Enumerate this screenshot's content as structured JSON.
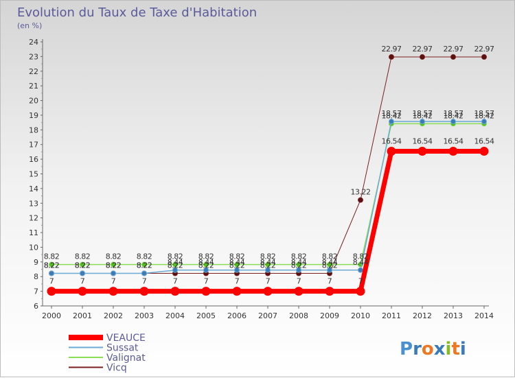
{
  "chart_data": {
    "type": "line",
    "title": "Evolution du Taux de Taxe d'Habitation",
    "subtitle": "(en %)",
    "x": [
      "2000",
      "2001",
      "2002",
      "2003",
      "2004",
      "2005",
      "2006",
      "2007",
      "2008",
      "2009",
      "2010",
      "2011",
      "2012",
      "2013",
      "2014"
    ],
    "ylim": [
      6,
      24
    ],
    "yticks": [
      6,
      7,
      8,
      9,
      10,
      11,
      12,
      13,
      14,
      15,
      16,
      17,
      18,
      19,
      20,
      21,
      22,
      23,
      24
    ],
    "grid": false,
    "legend_position": "bottom-left",
    "series": [
      {
        "name": "VEAUCE",
        "color": "#ff0000",
        "values": [
          7,
          7,
          7,
          7,
          7,
          7,
          7,
          7,
          7,
          7,
          7,
          16.54,
          16.54,
          16.54,
          16.54
        ],
        "labels": [
          "7",
          "7",
          "7",
          "7",
          "7",
          "7",
          "7",
          "7",
          "7",
          "7",
          "7",
          "16.54",
          "16.54",
          "16.54",
          "16.54"
        ]
      },
      {
        "name": "Sussat",
        "color": "#6aaad4",
        "values": [
          8.22,
          8.22,
          8.22,
          8.22,
          8.44,
          8.44,
          8.44,
          8.44,
          8.44,
          8.44,
          8.44,
          18.57,
          18.57,
          18.57,
          18.57
        ],
        "labels": [
          "8.22",
          "8.22",
          "8.22",
          "8.22",
          "8.44",
          "8.44",
          "8.44",
          "8.44",
          "8.44",
          "8.44",
          "8.44",
          "18.57",
          "18.57",
          "18.57",
          "18.57"
        ]
      },
      {
        "name": "Valignat",
        "color": "#88dd55",
        "values": [
          8.82,
          8.82,
          8.82,
          8.82,
          8.82,
          8.82,
          8.82,
          8.82,
          8.82,
          8.82,
          8.82,
          18.42,
          18.42,
          18.42,
          18.42
        ],
        "labels": [
          "8.82",
          "8.82",
          "8.82",
          "8.82",
          "8.82",
          "8.82",
          "8.82",
          "8.82",
          "8.82",
          "8.82",
          "8.82",
          "18.42",
          "18.42",
          "18.42",
          "18.42"
        ]
      },
      {
        "name": "Vicq",
        "color": "#7a1e1e",
        "values": [
          8.22,
          8.22,
          8.22,
          8.22,
          8.22,
          8.22,
          8.22,
          8.22,
          8.22,
          8.22,
          13.22,
          22.97,
          22.97,
          22.97,
          22.97
        ],
        "labels": [
          "8.22",
          "8.22",
          "8.22",
          "8.22",
          "8.22",
          "8.22",
          "8.22",
          "8.22",
          "8.22",
          "8.22",
          "13.22",
          "22.97",
          "22.97",
          "22.97",
          "22.97"
        ]
      }
    ]
  },
  "logo": {
    "text": "Proxiti"
  }
}
